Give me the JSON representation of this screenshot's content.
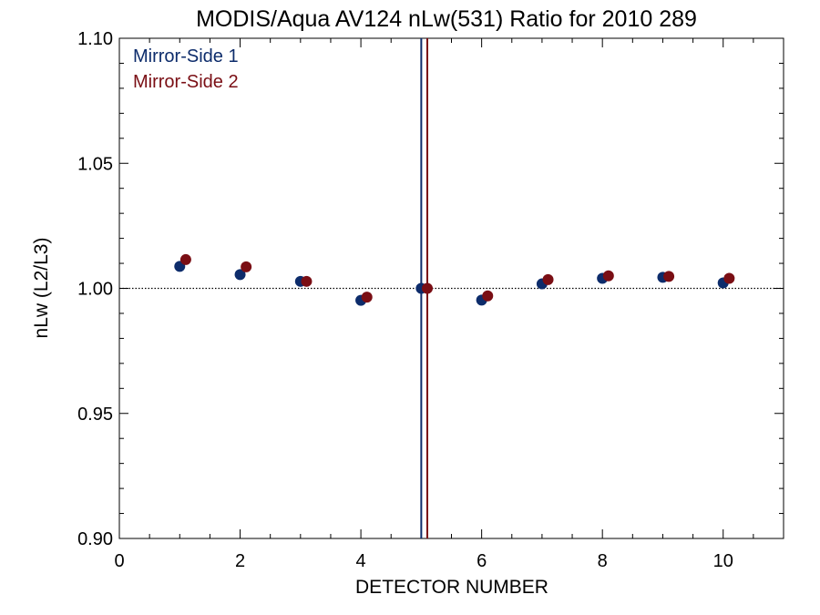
{
  "chart_data": {
    "type": "scatter",
    "title": "MODIS/Aqua AV124 nLw(531) Ratio for 2010 289",
    "xlabel": "DETECTOR NUMBER",
    "ylabel": "nLw (L2/L3)",
    "xlim": [
      0,
      11
    ],
    "ylim": [
      0.9,
      1.1
    ],
    "x_ticks": [
      0,
      2,
      4,
      6,
      8,
      10
    ],
    "x_tick_labels": [
      "0",
      "2",
      "4",
      "6",
      "8",
      "10"
    ],
    "y_ticks": [
      0.9,
      0.95,
      1.0,
      1.05,
      1.1
    ],
    "y_tick_labels": [
      "0.90",
      "0.95",
      "1.00",
      "1.05",
      "1.10"
    ],
    "reference_line": {
      "y": 1.0,
      "style": "dotted"
    },
    "vertical_lines": [
      {
        "x": 5.0,
        "series": "Mirror-Side 1"
      },
      {
        "x": 5.1,
        "series": "Mirror-Side 2"
      }
    ],
    "legend_placement": "top-left",
    "series": [
      {
        "name": "Mirror-Side 1",
        "color": "#0d2c6b",
        "x": [
          1,
          2,
          3,
          4,
          5,
          6,
          7,
          8,
          9,
          10
        ],
        "y": [
          1.0088,
          1.0055,
          1.0028,
          0.9952,
          1.0,
          0.9953,
          1.0018,
          1.004,
          1.0044,
          1.0022
        ]
      },
      {
        "name": "Mirror-Side 2",
        "color": "#7a0e14",
        "x": [
          1.1,
          2.1,
          3.1,
          4.1,
          5.1,
          6.1,
          7.1,
          8.1,
          9.1,
          10.1
        ],
        "y": [
          1.0115,
          1.0086,
          1.0028,
          0.9965,
          1.0,
          0.997,
          1.0035,
          1.005,
          1.0048,
          1.004
        ]
      }
    ]
  }
}
